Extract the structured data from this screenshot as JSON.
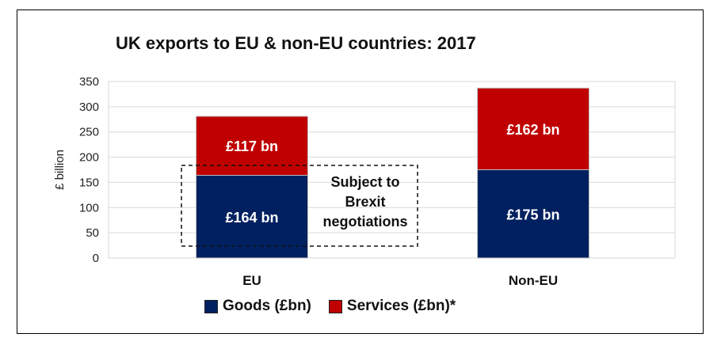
{
  "chart_data": {
    "type": "bar",
    "stacked": true,
    "title": "UK exports to EU & non-EU countries: 2017",
    "ylabel": "£ billion",
    "xlabel": "",
    "ylim": [
      0,
      350
    ],
    "yticks": [
      0,
      50,
      100,
      150,
      200,
      250,
      300,
      350
    ],
    "categories": [
      "EU",
      "Non-EU"
    ],
    "series": [
      {
        "name": "Goods (£bn)",
        "values": [
          164,
          175
        ],
        "color": "#002060",
        "labels": [
          "£164 bn",
          "£175  bn"
        ]
      },
      {
        "name": "Services (£bn)*",
        "values": [
          117,
          162
        ],
        "color": "#c00000",
        "labels": [
          "£117 bn",
          "£162 bn"
        ]
      }
    ],
    "annotation": {
      "text_lines": [
        "Subject to",
        "Brexit",
        "negotiations"
      ],
      "style": "dashed box around EU bar"
    },
    "grid": true,
    "legend_position": "bottom"
  }
}
